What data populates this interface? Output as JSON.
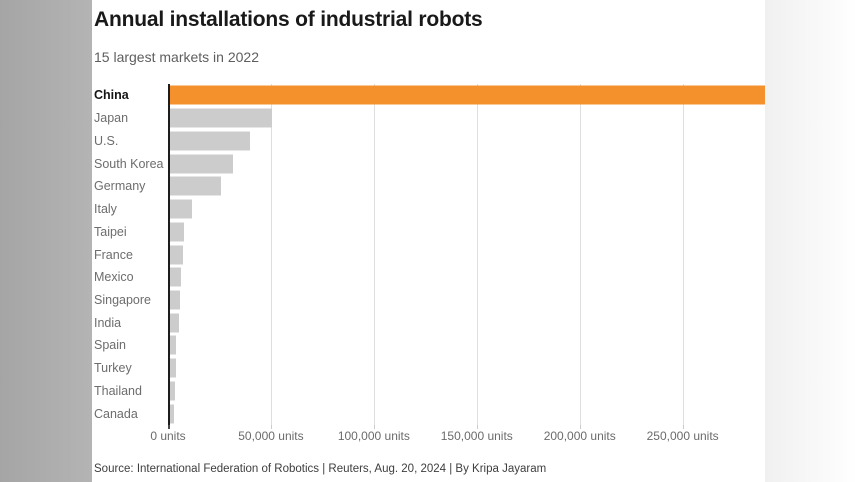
{
  "header": {
    "title": "Annual installations of industrial robots",
    "subtitle": "15 largest markets in 2022"
  },
  "chart_data": {
    "type": "bar",
    "orientation": "horizontal",
    "title": "Annual installations of industrial robots",
    "subtitle": "15 largest markets in 2022",
    "categories": [
      "China",
      "Japan",
      "U.S.",
      "South Korea",
      "Germany",
      "Italy",
      "Taipei",
      "France",
      "Mexico",
      "Singapore",
      "India",
      "Spain",
      "Turkey",
      "Thailand",
      "Canada"
    ],
    "values": [
      290000,
      50400,
      39600,
      31700,
      25600,
      11500,
      7600,
      7400,
      6400,
      5700,
      5200,
      3700,
      3800,
      3400,
      2900
    ],
    "unit": "units",
    "xlabel": "",
    "ylabel": "",
    "xlim": [
      0,
      290000
    ],
    "highlight_category": "China",
    "highlight_color": "#f4912c",
    "bar_color": "#cccccc",
    "grid": "vertical gridlines at 50,000-unit intervals",
    "legend": "none",
    "x_axis": {
      "max": 290000,
      "ticks": [
        0,
        50000,
        100000,
        150000,
        200000,
        250000
      ],
      "tick_labels": [
        "0 units",
        "50,000 units",
        "100,000 units",
        "150,000 units",
        "200,000 units",
        "250,000 units"
      ]
    }
  },
  "footer": {
    "source": "Source: International Federation of Robotics | Reuters, Aug. 20, 2024 | By Kripa Jayaram"
  },
  "colors": {
    "highlight_bar": "#f4912c",
    "default_bar": "#cccccc",
    "axis_line": "#1d1d1d",
    "gridline": "#dedede",
    "left_band": "#a8a8a8",
    "right_band": "#f2f2f2"
  }
}
